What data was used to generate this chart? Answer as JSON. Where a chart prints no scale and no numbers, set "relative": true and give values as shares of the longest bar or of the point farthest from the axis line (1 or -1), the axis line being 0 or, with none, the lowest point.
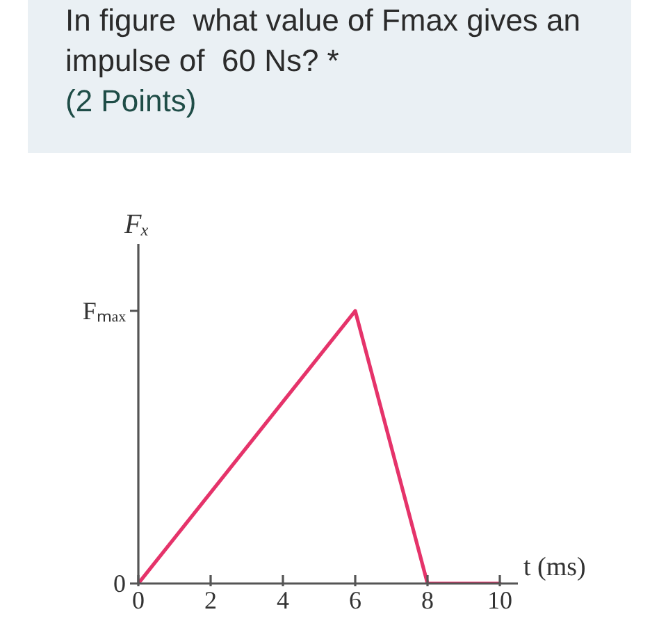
{
  "chart_data": {
    "type": "line",
    "title": "In figure  what value of Fmax gives an impulse of  60 Ns? *",
    "subtitle": "(2 Points)",
    "xlabel": "t (ms)",
    "ylabel": "Fₓ",
    "x": [
      0,
      6,
      8,
      10
    ],
    "series": [
      {
        "color": "#e5336a",
        "values": [
          0,
          1,
          0,
          0
        ]
      }
    ],
    "relative": true,
    "xlim": [
      0,
      10.5
    ],
    "xticks": [
      0,
      2,
      4,
      6,
      8,
      10
    ],
    "annotations": [
      "0",
      "Fₘₐₓ"
    ],
    "grid": false,
    "line_style": "solid"
  }
}
